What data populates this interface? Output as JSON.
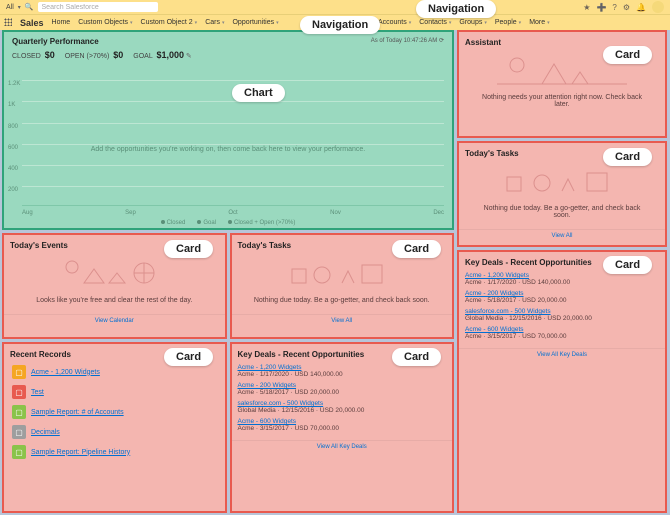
{
  "topbar": {
    "scope": "All",
    "search_placeholder": "Search Salesforce"
  },
  "nav": {
    "app": "Sales",
    "items": [
      "Home",
      "Custom Objects",
      "Custom Object 2",
      "Cars",
      "Opportunities",
      "",
      "Files",
      "Accounts",
      "Contacts",
      "Groups",
      "People",
      "More"
    ]
  },
  "annotations": {
    "nav_pill": "Navigation",
    "nav_pill2": "Navigation",
    "chart_pill": "Chart",
    "card_pill": "Card"
  },
  "chart": {
    "title": "Quarterly Performance",
    "asof": "As of Today 10:47:26 AM",
    "kpi_closed_label": "CLOSED",
    "kpi_closed": "$0",
    "kpi_open_label": "OPEN (>70%)",
    "kpi_open": "$0",
    "kpi_goal_label": "GOAL",
    "kpi_goal": "$1,000",
    "yticks": [
      "1.2K",
      "1K",
      "800",
      "600",
      "400",
      "200"
    ],
    "xticks": [
      "Aug",
      "Sep",
      "Oct",
      "Nov",
      "Dec"
    ],
    "message": "Add the opportunities you're working on, then come back here to view your performance.",
    "legend": [
      "Closed",
      "Goal",
      "Closed + Open (>70%)"
    ],
    "colors": {
      "bg": "#9ad9bf",
      "border": "#2fa37a",
      "grid": "#bde6d3",
      "text": "#5a8f78"
    }
  },
  "events": {
    "title": "Today's Events",
    "message": "Looks like you're free and clear the rest of the day.",
    "footer": "View Calendar"
  },
  "tasks_left": {
    "title": "Today's Tasks",
    "message": "Nothing due today. Be a go-getter, and check back soon.",
    "footer": "View All"
  },
  "recent": {
    "title": "Recent Records",
    "items": [
      {
        "icon_bg": "#f5a623",
        "label": "Acme - 1,200 Widgets"
      },
      {
        "icon_bg": "#e85a4f",
        "label": "Test"
      },
      {
        "icon_bg": "#8bc34a",
        "label": "Sample Report: # of Accounts"
      },
      {
        "icon_bg": "#9e9e9e",
        "label": "Decimals"
      },
      {
        "icon_bg": "#8bc34a",
        "label": "Sample Report: Pipeline History"
      }
    ]
  },
  "deals_left": {
    "title": "Key Deals - Recent Opportunities",
    "items": [
      {
        "t": "Acme - 1,200 Widgets",
        "s": "Acme · 1/17/2020 · USD 140,000.00"
      },
      {
        "t": "Acme - 200 Widgets",
        "s": "Acme · 5/18/2017 · USD 20,000.00"
      },
      {
        "t": "salesforce.com - 500 Widgets",
        "s": "Global Media · 12/15/2016 · USD 20,000.00"
      },
      {
        "t": "Acme - 600 Widgets",
        "s": "Acme · 3/15/2017 · USD 70,000.00"
      }
    ],
    "footer": "View All Key Deals"
  },
  "assistant": {
    "title": "Assistant",
    "message": "Nothing needs your attention right now. Check back later."
  },
  "tasks_right": {
    "title": "Today's Tasks",
    "message": "Nothing due today. Be a go-getter, and check back soon.",
    "footer": "View All"
  },
  "deals_right": {
    "title": "Key Deals - Recent Opportunities",
    "items": [
      {
        "t": "Acme - 1,200 Widgets",
        "s": "Acme · 1/17/2020 · USD 140,000.00"
      },
      {
        "t": "Acme - 200 Widgets",
        "s": "Acme · 5/18/2017 · USD 20,000.00"
      },
      {
        "t": "salesforce.com - 500 Widgets",
        "s": "Global Media · 12/15/2016 · USD 20,000.00"
      },
      {
        "t": "Acme - 600 Widgets",
        "s": "Acme · 3/15/2017 · USD 70,000.00"
      }
    ],
    "footer": "View All Key Deals"
  }
}
